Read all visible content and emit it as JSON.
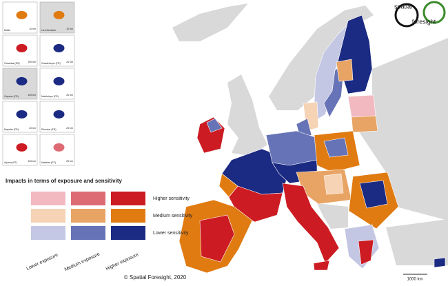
{
  "logo": {
    "line1": "spatial",
    "line2": "foresight"
  },
  "insets": [
    {
      "label": "Malta",
      "scale": "10 km"
    },
    {
      "label": "Liechtenstein",
      "scale": "10 km"
    },
    {
      "label": "Canarias (ES)",
      "scale": "100 km"
    },
    {
      "label": "Guadeloupe (FR)",
      "scale": "20 km"
    },
    {
      "label": "Guyane (FR)",
      "scale": "100 km"
    },
    {
      "label": "Martinique (FR)",
      "scale": "20 km"
    },
    {
      "label": "Mayotte (FR)",
      "scale": "20 km"
    },
    {
      "label": "Réunion (FR)",
      "scale": "20 km"
    },
    {
      "label": "Açores (PT)",
      "scale": "100 km"
    },
    {
      "label": "Madeira (PT)",
      "scale": "20 km"
    }
  ],
  "legend": {
    "title": "Impacts in terms of exposure and sensitivity",
    "rows": [
      "Higher sensitivity",
      "Medium sensitivity",
      "Lower sensitivity"
    ],
    "columns": [
      "Lower exposure",
      "Medium exposure",
      "Higher exposure"
    ],
    "colors": [
      [
        "#f2b9c1",
        "#dd6b74",
        "#cc1b22"
      ],
      [
        "#f6d3b5",
        "#e8a464",
        "#e07b12"
      ],
      [
        "#c4c7e3",
        "#6673b6",
        "#1b2a82"
      ]
    ]
  },
  "scale_bar": "1000 km",
  "copyright": "© Spatial Foresight, 2020"
}
